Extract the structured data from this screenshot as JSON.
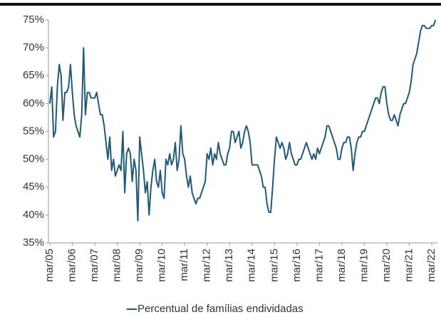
{
  "chart_data": {
    "type": "line",
    "categories": [
      "mar/05",
      null,
      null,
      null,
      null,
      null,
      null,
      null,
      null,
      null,
      null,
      null,
      "mar/06",
      null,
      null,
      null,
      null,
      null,
      null,
      null,
      null,
      null,
      null,
      null,
      "mar/07",
      null,
      null,
      null,
      null,
      null,
      null,
      null,
      null,
      null,
      null,
      null,
      "mar/08",
      null,
      null,
      null,
      null,
      null,
      null,
      null,
      null,
      null,
      null,
      null,
      "mar/09",
      null,
      null,
      null,
      null,
      null,
      null,
      null,
      null,
      null,
      null,
      null,
      "mar/10",
      null,
      null,
      null,
      null,
      null,
      null,
      null,
      null,
      null,
      null,
      null,
      "mar/11",
      null,
      null,
      null,
      null,
      null,
      null,
      null,
      null,
      null,
      null,
      null,
      "mar/12",
      null,
      null,
      null,
      null,
      null,
      null,
      null,
      null,
      null,
      null,
      null,
      "mar/13",
      null,
      null,
      null,
      null,
      null,
      null,
      null,
      null,
      null,
      null,
      null,
      "mar/14",
      null,
      null,
      null,
      null,
      null,
      null,
      null,
      null,
      null,
      null,
      null,
      "mar/15",
      null,
      null,
      null,
      null,
      null,
      null,
      null,
      null,
      null,
      null,
      null,
      "mar/16",
      null,
      null,
      null,
      null,
      null,
      null,
      null,
      null,
      null,
      null,
      null,
      "mar/17",
      null,
      null,
      null,
      null,
      null,
      null,
      null,
      null,
      null,
      null,
      null,
      "mar/18",
      null,
      null,
      null,
      null,
      null,
      null,
      null,
      null,
      null,
      null,
      null,
      "mar/19",
      null,
      null,
      null,
      null,
      null,
      null,
      null,
      null,
      null,
      null,
      null,
      "mar/20",
      null,
      null,
      null,
      null,
      null,
      null,
      null,
      null,
      null,
      null,
      null,
      "mar/21",
      null,
      null,
      null,
      null,
      null,
      null,
      null,
      null,
      null,
      null,
      null,
      "mar/22",
      null,
      null
    ],
    "series": [
      {
        "name": "Percentual de famílias endividadas",
        "color": "#215a78",
        "values": [
          60,
          63,
          54,
          55,
          63,
          67,
          65,
          57,
          62,
          62,
          63,
          67,
          62,
          58,
          56,
          55,
          54,
          58,
          70,
          58,
          62,
          62,
          61,
          61,
          61,
          62,
          60,
          58,
          58,
          56,
          53,
          50,
          54,
          48,
          50,
          47,
          48,
          49,
          48,
          55,
          44,
          51,
          52,
          51,
          46,
          50,
          48,
          39,
          54,
          51,
          48,
          44,
          46,
          40,
          45,
          48,
          50,
          46,
          45,
          48,
          44,
          43,
          50,
          49,
          51,
          49,
          50,
          53,
          48,
          50,
          56,
          51,
          50,
          47,
          45,
          47,
          44,
          43,
          42,
          43,
          43,
          44,
          45,
          46,
          51,
          50,
          52,
          49,
          51,
          50,
          53,
          51,
          50,
          49,
          49,
          51,
          52,
          55,
          55,
          53,
          54,
          55,
          52,
          53,
          55,
          56,
          55,
          53,
          49,
          49,
          49,
          49,
          48,
          47,
          45,
          45,
          42,
          40.5,
          40.5,
          45,
          50,
          54,
          53,
          52,
          53,
          52,
          50,
          51,
          53,
          51,
          50,
          49,
          49,
          50,
          50,
          51,
          52,
          53,
          52,
          51,
          50,
          51,
          50,
          52,
          51,
          52,
          53,
          54,
          56,
          56,
          55,
          54,
          53,
          52,
          50,
          50,
          52,
          53,
          53,
          54,
          54,
          52,
          48,
          51,
          53,
          54,
          54,
          55,
          55,
          56,
          57,
          58,
          59,
          60,
          61,
          61,
          60,
          62,
          63,
          63,
          60,
          58,
          57,
          57,
          58,
          57,
          56,
          58,
          59,
          60,
          60,
          61,
          62,
          64,
          67,
          68,
          69,
          71,
          73,
          74,
          74,
          73.5,
          73.5,
          73.5,
          74,
          74,
          75
        ]
      }
    ],
    "ylim": [
      35,
      75
    ],
    "yticks": [
      {
        "value": 35,
        "label": "35%"
      },
      {
        "value": 40,
        "label": "40%"
      },
      {
        "value": 45,
        "label": "45%"
      },
      {
        "value": 50,
        "label": "50%"
      },
      {
        "value": 55,
        "label": "55%"
      },
      {
        "value": 60,
        "label": "60%"
      },
      {
        "value": 65,
        "label": "65%"
      },
      {
        "value": 70,
        "label": "70%"
      },
      {
        "value": 75,
        "label": "75%"
      }
    ],
    "grid": false,
    "legend": "bottom"
  }
}
